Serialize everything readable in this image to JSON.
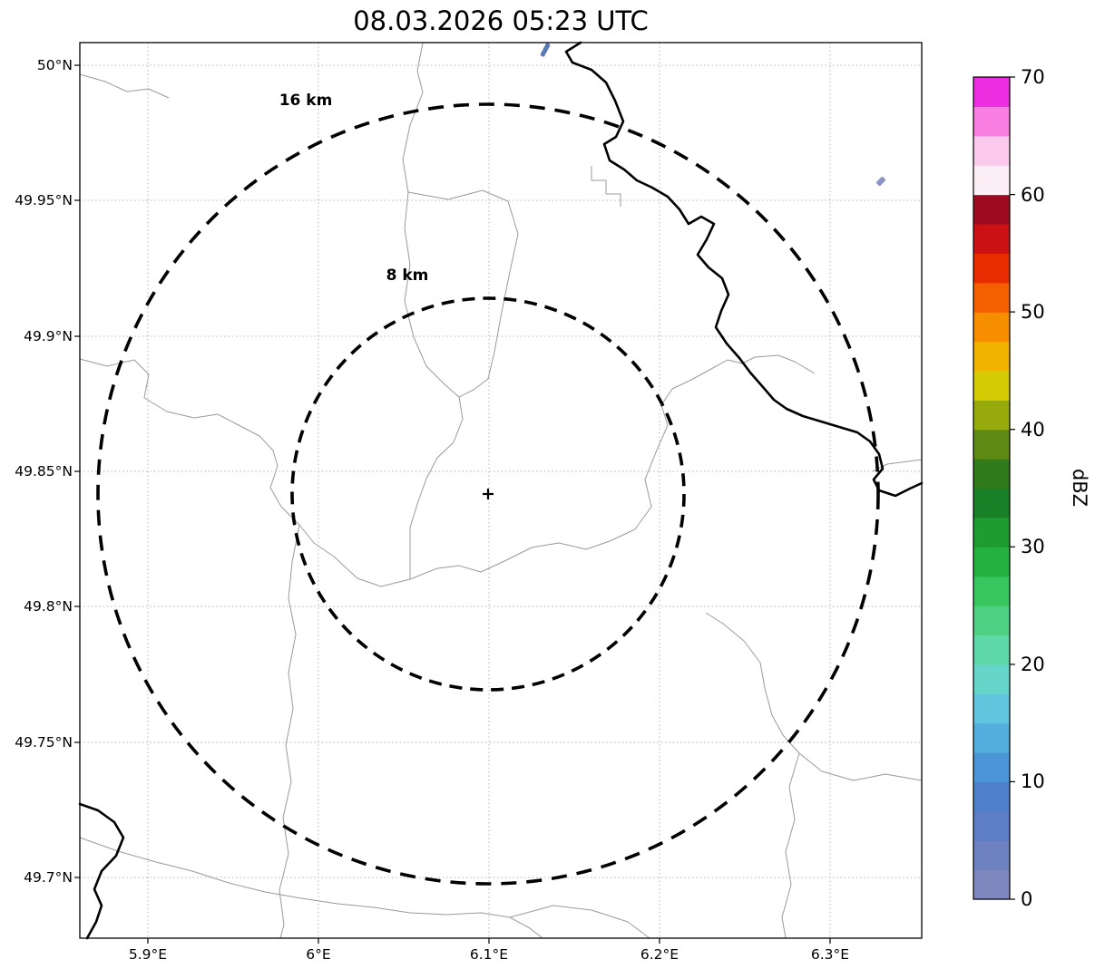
{
  "title": "08.03.2026 05:23 UTC",
  "axes": {
    "y_ticks": [
      "50°N",
      "49.95°N",
      "49.9°N",
      "49.85°N",
      "49.8°N",
      "49.75°N",
      "49.7°N"
    ],
    "x_ticks": [
      "5.9°E",
      "6°E",
      "6.1°E",
      "6.2°E",
      "6.3°E"
    ]
  },
  "rings": {
    "outer_label": "16 km",
    "inner_label": "8 km"
  },
  "colorbar": {
    "label": "dBZ",
    "ticks": [
      "70",
      "60",
      "50",
      "40",
      "30",
      "20",
      "10",
      "0"
    ],
    "colors_bottom_to_top": [
      "#7e88be",
      "#6e81c1",
      "#5e7ec7",
      "#4f80cc",
      "#4b94d6",
      "#53aedd",
      "#60c5dd",
      "#66d6ca",
      "#5fd8a7",
      "#4ed183",
      "#38c75f",
      "#24b13d",
      "#1e9c2f",
      "#188026",
      "#2f7a1b",
      "#5d8a13",
      "#97aa0b",
      "#d6cc05",
      "#efb300",
      "#f78e00",
      "#f45f00",
      "#e92c00",
      "#cc1114",
      "#9c0b1f",
      "#fdeff6",
      "#fbc9ec",
      "#f87ee2",
      "#ec2ee0"
    ]
  },
  "echoes": {
    "color_strong": "#5b79b4",
    "color_weak": "#8a96c8"
  },
  "chart_data": {
    "type": "heatmap",
    "title": "08.03.2026 05:23 UTC",
    "description": "Weather radar reflectivity (dBZ) map with dashed 8 km and 16 km range rings centered on the radar site marker; map shows lat/lon grid, thin administrative boundaries and a thick river/border line in the northeast; almost no precipitation echoes present.",
    "xlabel": "",
    "ylabel": "",
    "xlim_deg_e": [
      5.86,
      6.35
    ],
    "ylim_deg_n": [
      49.678,
      50.008
    ],
    "x_ticks_deg_e": [
      5.9,
      6.0,
      6.1,
      6.2,
      6.3
    ],
    "y_ticks_deg_n": [
      50.0,
      49.95,
      49.9,
      49.85,
      49.8,
      49.75,
      49.7
    ],
    "radar_center_deg": {
      "lon_e": 6.1,
      "lat_n": 49.842
    },
    "range_rings_km": [
      8,
      16
    ],
    "colorbar": {
      "label": "dBZ",
      "min": 0,
      "max": 70,
      "ticks": [
        0,
        10,
        20,
        30,
        40,
        50,
        60,
        70
      ]
    },
    "echoes": [
      {
        "lon_e": 6.13,
        "lat_n": 50.005,
        "dbz_approx": 5
      },
      {
        "lon_e": 6.33,
        "lat_n": 49.956,
        "dbz_approx": 3
      }
    ],
    "grid": true,
    "legend_position": "right-colorbar"
  }
}
